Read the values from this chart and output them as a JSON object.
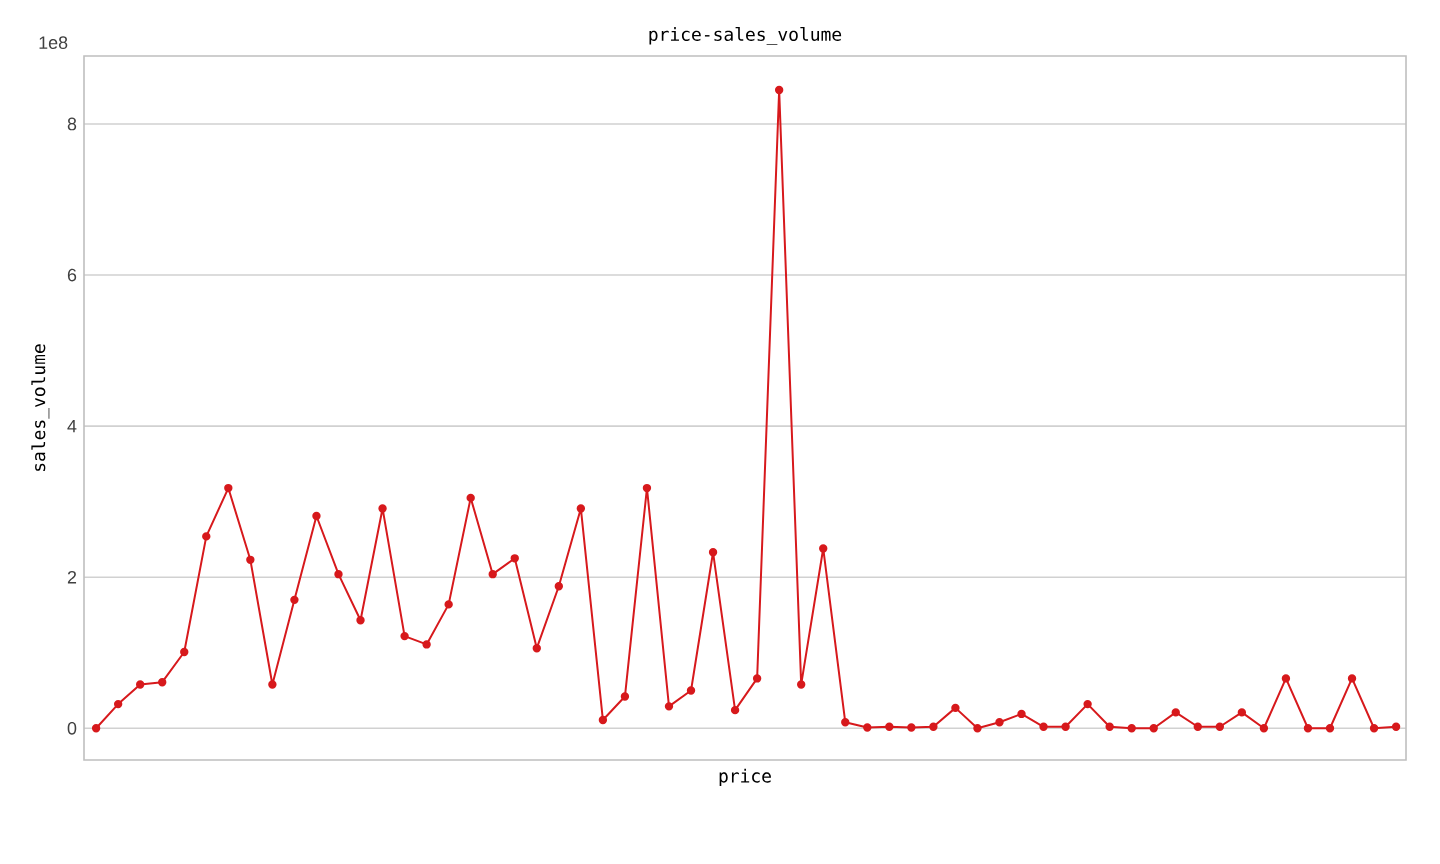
{
  "chart_data": {
    "type": "line",
    "title": "price-sales_volume",
    "xlabel": "price",
    "ylabel": "sales_volume",
    "annotations": [
      "1e8"
    ],
    "categories": [
      null,
      null,
      null,
      null,
      null,
      null,
      null,
      null,
      null,
      null,
      null,
      null,
      null,
      null,
      null,
      null,
      null,
      null,
      null,
      null,
      null,
      null,
      null,
      null,
      null,
      null,
      null,
      null,
      null,
      null,
      null,
      null,
      null,
      null,
      null,
      null,
      null,
      null,
      null,
      null,
      null,
      null,
      null,
      null,
      null,
      null,
      null,
      null,
      null,
      null,
      null,
      null,
      null,
      null,
      null,
      null,
      null,
      null,
      null,
      null
    ],
    "series": [
      {
        "color": "#d7191c",
        "values": [
          0,
          0.32,
          0.58,
          0.61,
          1.01,
          2.54,
          3.18,
          2.23,
          0.58,
          1.7,
          2.81,
          2.04,
          1.43,
          2.91,
          1.22,
          1.11,
          1.64,
          3.05,
          2.04,
          2.25,
          1.06,
          1.88,
          2.91,
          0.11,
          0.42,
          3.18,
          0.29,
          0.5,
          2.33,
          0.24,
          0.66,
          8.45,
          0.58,
          2.38,
          0.08,
          0.01,
          0.02,
          0.01,
          0.02,
          0.27,
          0,
          0.08,
          0.19,
          0.02,
          0.02,
          0.32,
          0.02,
          0,
          0,
          0.21,
          0.02,
          0.02,
          0.21,
          0,
          0.66,
          0,
          0,
          0.66,
          0,
          0.02
        ]
      }
    ],
    "ylim": [
      -0.42,
      8.9
    ],
    "yticks": [
      0,
      2,
      4,
      6,
      8
    ],
    "grid": "y",
    "marker": "circle",
    "line_style": "solid",
    "tick_labels": "y"
  }
}
